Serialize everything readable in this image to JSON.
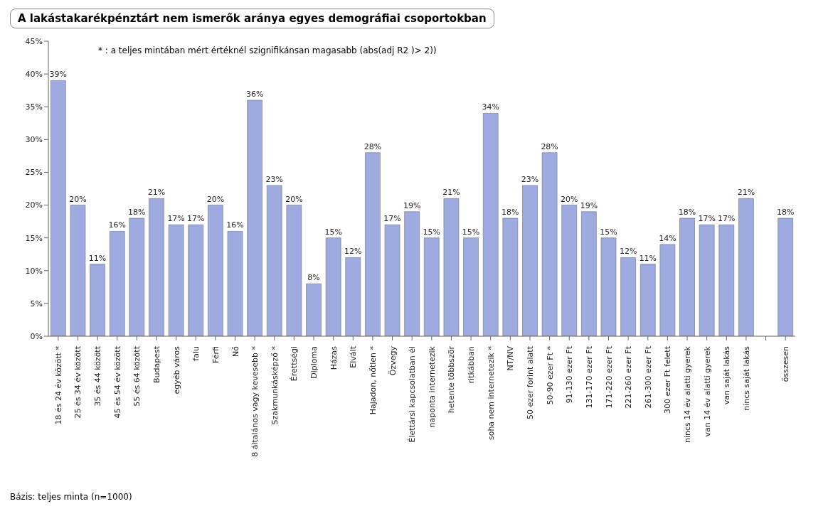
{
  "chart_data": {
    "type": "bar",
    "title": "A lakástakarékpénztárt nem ismerők aránya egyes demográfiai csoportokban",
    "annotations": [
      "* : a teljes mintában mért értéknél szignifikánsan magasabb (abs(adj R2 )>  2))",
      "Bázis: teljes minta (n=1000)"
    ],
    "categories": [
      "18 és 24 év között *",
      "25 és 34 év között",
      "35 és 44 között",
      "45 és 54 év között",
      "55 és 64 között",
      "Budapest",
      "egyéb város",
      "falu",
      "Férfi",
      "Nő",
      "8 általános vagy kevesebb *",
      "Szakmunkásképző *",
      "Érettségi",
      "Diploma",
      "Házas",
      "Elvált",
      "Hajadon, nőtlen *",
      "Özvegy",
      "Élettársi kapcsolatban él",
      "naponta internetezik",
      "hetente többször",
      "ritkábban",
      "soha nem internetezik *",
      "NT/NV",
      "50 ezer forint alatt",
      "50-90 ezer Ft *",
      "91-130 ezer Ft",
      "131-170 ezer Ft",
      "171-220 ezer Ft",
      "221-260 ezer Ft",
      "261-300 ezer Ft",
      "300 ezer Ft felett",
      "nincs 14 év alatti gyerek",
      "van 14 év alatti gyerek",
      "van saját lakás",
      "nincs saját lakás",
      null,
      "összesen"
    ],
    "values": [
      39,
      20,
      11,
      16,
      18,
      21,
      17,
      17,
      20,
      16,
      36,
      23,
      20,
      8,
      15,
      12,
      28,
      17,
      19,
      15,
      21,
      15,
      34,
      18,
      23,
      28,
      20,
      19,
      15,
      12,
      11,
      14,
      18,
      17,
      17,
      21,
      null,
      18
    ],
    "value_labels": [
      "39%",
      "20%",
      "11%",
      "16%",
      "18%",
      "21%",
      "17%",
      "17%",
      "20%",
      "16%",
      "36%",
      "23%",
      "20%",
      "8%",
      "15%",
      "12%",
      "28%",
      "17%",
      "19%",
      "15%",
      "21%",
      "15%",
      "34%",
      "18%",
      "23%",
      "28%",
      "20%",
      "19%",
      "15%",
      "12%",
      "11%",
      "14%",
      "18%",
      "17%",
      "17%",
      "21%",
      null,
      "18%"
    ],
    "color": "#9dabe0",
    "ylim": [
      0,
      45
    ],
    "yticks": [
      {
        "value": 0,
        "label": "0%"
      },
      {
        "value": 5,
        "label": "5%"
      },
      {
        "value": 10,
        "label": "10%"
      },
      {
        "value": 15,
        "label": "15%"
      },
      {
        "value": 20,
        "label": "20%"
      },
      {
        "value": 25,
        "label": "25%"
      },
      {
        "value": 30,
        "label": "30%"
      },
      {
        "value": 35,
        "label": "35%"
      },
      {
        "value": 40,
        "label": "40%"
      },
      {
        "value": 45,
        "label": "45%"
      }
    ],
    "grid": false
  }
}
